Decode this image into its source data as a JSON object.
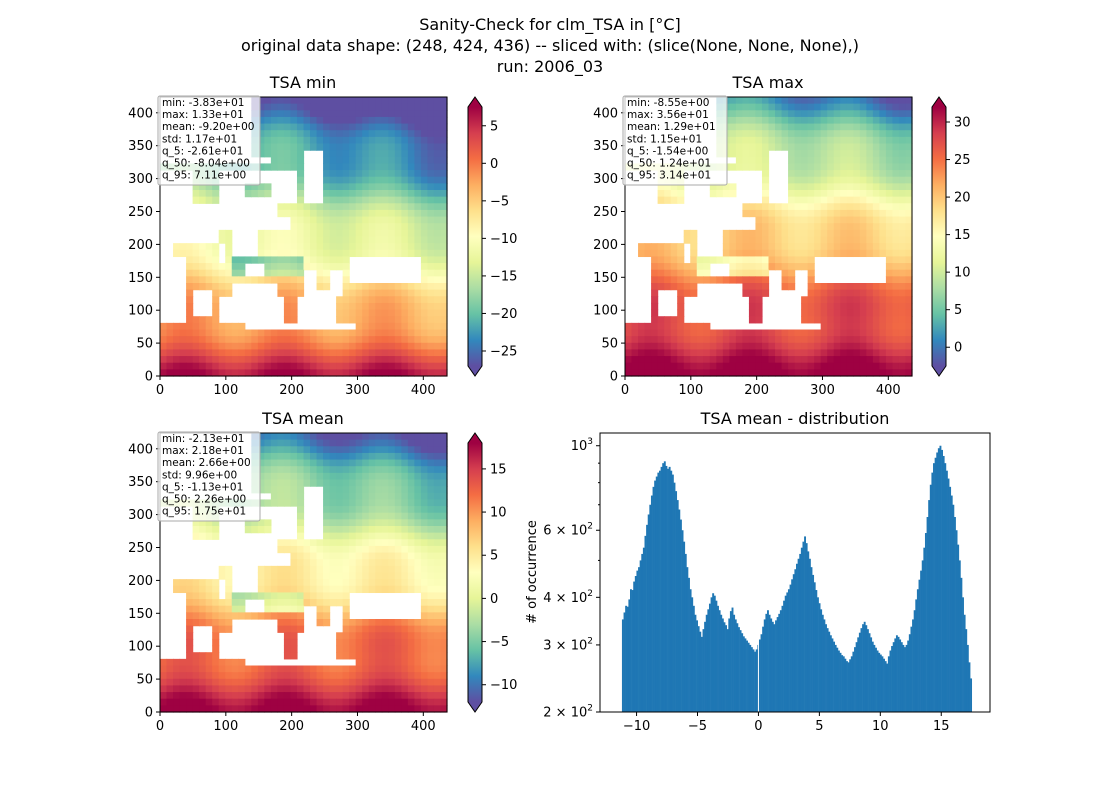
{
  "figure": {
    "title_lines": [
      "Sanity-Check for clm_TSA in [°C]",
      "original data shape: (248, 424, 436) -- sliced with: (slice(None, None, None),)",
      "run: 2006_03"
    ]
  },
  "chart_data": [
    {
      "type": "heatmap",
      "title": "TSA min",
      "xlim": [
        0,
        436
      ],
      "ylim": [
        0,
        424
      ],
      "xticks": [
        "0",
        "100",
        "200",
        "300",
        "400"
      ],
      "yticks": [
        "0",
        "50",
        "100",
        "150",
        "200",
        "250",
        "300",
        "350",
        "400"
      ],
      "colormap": "Spectral_r",
      "clim": [
        -27,
        7.5
      ],
      "colorbar_ticks": [
        "5",
        "0",
        "−5",
        "−10",
        "−15",
        "−20",
        "−25"
      ],
      "colorbar_tick_values": [
        5,
        0,
        -5,
        -10,
        -15,
        -20,
        -25
      ],
      "stats": [
        "min: -3.83e+01",
        "max: 1.33e+01",
        "mean: -9.20e+00",
        "std: 1.17e+01",
        "q_5: -2.61e+01",
        "q_50: -8.04e+00",
        "q_95: 7.11e+00"
      ]
    },
    {
      "type": "heatmap",
      "title": "TSA max",
      "xlim": [
        0,
        436
      ],
      "ylim": [
        0,
        424
      ],
      "xticks": [
        "0",
        "100",
        "200",
        "300",
        "400"
      ],
      "yticks": [
        "0",
        "50",
        "100",
        "150",
        "200",
        "250",
        "300",
        "350",
        "400"
      ],
      "colormap": "Spectral_r",
      "clim": [
        -2.5,
        32
      ],
      "colorbar_ticks": [
        "30",
        "25",
        "20",
        "15",
        "10",
        "5",
        "0"
      ],
      "colorbar_tick_values": [
        30,
        25,
        20,
        15,
        10,
        5,
        0
      ],
      "stats": [
        "min: -8.55e+00",
        "max: 3.56e+01",
        "mean: 1.29e+01",
        "std: 1.15e+01",
        "q_5: -1.54e+00",
        "q_50: 1.24e+01",
        "q_95: 3.14e+01"
      ]
    },
    {
      "type": "heatmap",
      "title": "TSA mean",
      "xlim": [
        0,
        436
      ],
      "ylim": [
        0,
        424
      ],
      "xticks": [
        "0",
        "100",
        "200",
        "300",
        "400"
      ],
      "yticks": [
        "0",
        "50",
        "100",
        "150",
        "200",
        "250",
        "300",
        "350",
        "400"
      ],
      "colormap": "Spectral_r",
      "clim": [
        -12,
        18
      ],
      "colorbar_ticks": [
        "15",
        "10",
        "5",
        "0",
        "−5",
        "−10"
      ],
      "colorbar_tick_values": [
        15,
        10,
        5,
        0,
        -5,
        -10
      ],
      "stats": [
        "min: -2.13e+01",
        "max: 2.18e+01",
        "mean: 2.66e+00",
        "std: 9.96e+00",
        "q_5: -1.13e+01",
        "q_50: 2.26e+00",
        "q_95: 1.75e+01"
      ]
    },
    {
      "type": "bar",
      "title": "TSA mean - distribution",
      "ylabel": "# of occurrence",
      "yscale": "log",
      "xlim": [
        -13,
        19
      ],
      "ylim": [
        200,
        1080
      ],
      "xticks": [
        "−10",
        "−5",
        "0",
        "5",
        "10",
        "15"
      ],
      "xtick_values": [
        -10,
        -5,
        0,
        5,
        10,
        15
      ],
      "yticks": [
        {
          "value": 200,
          "base": "2 × 10",
          "exp": "2"
        },
        {
          "value": 300,
          "base": "3 × 10",
          "exp": "2"
        },
        {
          "value": 400,
          "base": "4 × 10",
          "exp": "2"
        },
        {
          "value": 600,
          "base": "6 × 10",
          "exp": "2"
        },
        {
          "value": 1000,
          "base": "10",
          "exp": "3"
        }
      ],
      "bar_color": "#1f77b4",
      "x_range": [
        -11.2,
        17.5
      ],
      "values": [
        350,
        365,
        380,
        378,
        395,
        420,
        418,
        440,
        455,
        470,
        480,
        500,
        520,
        540,
        580,
        620,
        660,
        700,
        740,
        780,
        810,
        830,
        850,
        860,
        880,
        900,
        910,
        885,
        870,
        880,
        860,
        840,
        800,
        760,
        720,
        680,
        640,
        600,
        560,
        520,
        480,
        450,
        420,
        400,
        380,
        360,
        348,
        336,
        325,
        315,
        330,
        345,
        360,
        372,
        385,
        400,
        410,
        404,
        392,
        380,
        370,
        360,
        352,
        344,
        338,
        330,
        352,
        368,
        376,
        360,
        350,
        342,
        334,
        328,
        322,
        316,
        312,
        308,
        304,
        300,
        296,
        292,
        288,
        292,
        300,
        310,
        320,
        335,
        350,
        362,
        370,
        360,
        352,
        345,
        340,
        348,
        355,
        362,
        370,
        380,
        392,
        404,
        412,
        420,
        432,
        446,
        460,
        474,
        490,
        505,
        520,
        540,
        560,
        578,
        555,
        528,
        505,
        480,
        458,
        438,
        418,
        400,
        386,
        372,
        360,
        350,
        340,
        332,
        325,
        318,
        312,
        306,
        300,
        295,
        290,
        286,
        282,
        280,
        276,
        272,
        270,
        275,
        280,
        288,
        296,
        305,
        314,
        323,
        332,
        340,
        345,
        338,
        330,
        322,
        314,
        306,
        300,
        295,
        290,
        286,
        283,
        280,
        276,
        272,
        268,
        280,
        290,
        298,
        305,
        312,
        318,
        315,
        310,
        305,
        300,
        296,
        300,
        308,
        320,
        335,
        350,
        370,
        395,
        420,
        445,
        470,
        500,
        540,
        590,
        650,
        720,
        790,
        850,
        900,
        930,
        960,
        985,
        1000,
        975,
        940,
        900,
        860,
        820,
        780,
        740,
        700,
        650,
        600,
        550,
        500,
        450,
        400,
        360,
        330,
        300,
        270,
        245
      ]
    }
  ]
}
